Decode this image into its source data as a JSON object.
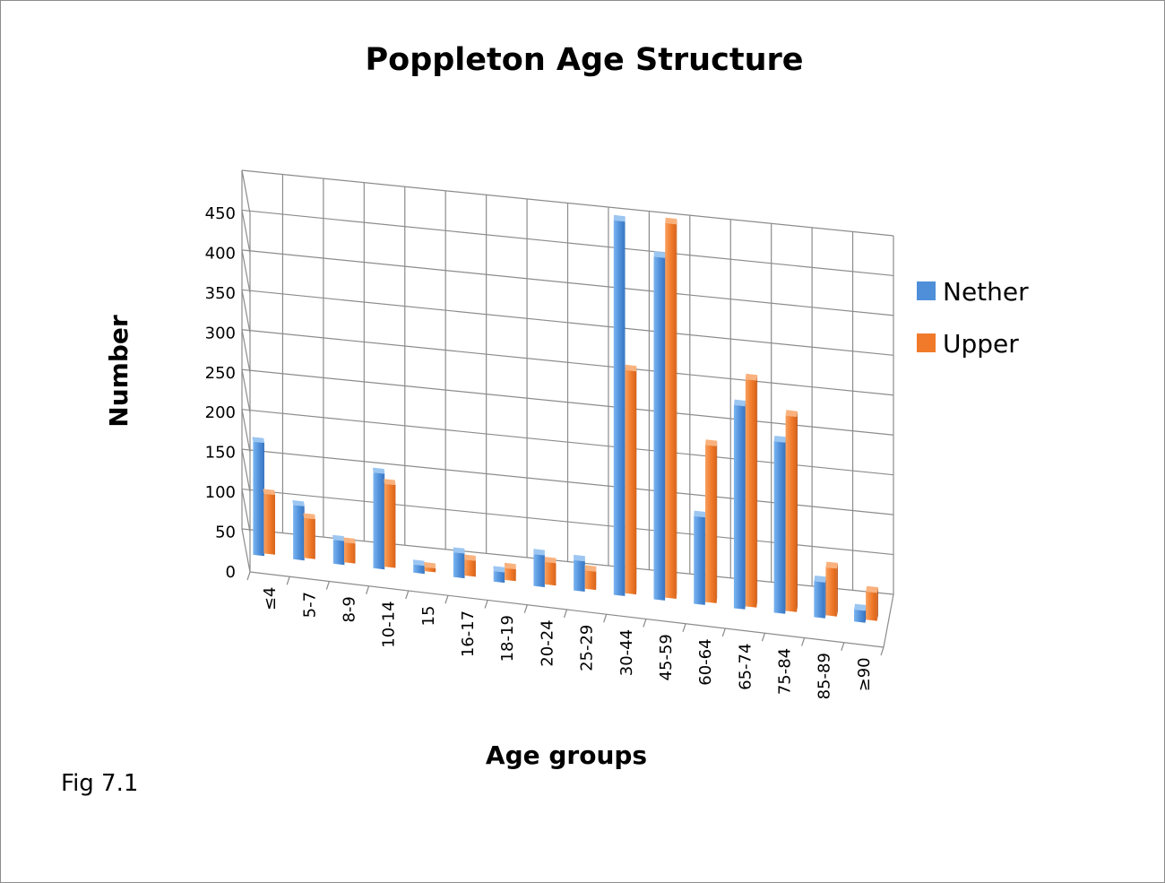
{
  "chart_data": {
    "type": "bar",
    "title": "Poppleton Age Structure",
    "xlabel": "Age groups",
    "ylabel": "Number",
    "ylim": [
      0,
      450
    ],
    "yticks": [
      0,
      50,
      100,
      150,
      200,
      250,
      300,
      350,
      400,
      450
    ],
    "grid": true,
    "legend_position": "right",
    "categories": [
      "≤4",
      "5-7",
      "8-9",
      "10-14",
      "15",
      "16-17",
      "18-19",
      "20-24",
      "25-29",
      "30-44",
      "45-59",
      "60-64",
      "65-74",
      "75-84",
      "85-89",
      "≥90"
    ],
    "series": [
      {
        "name": "Nether",
        "color": "#4f8fd9",
        "values": [
          142,
          68,
          30,
          120,
          10,
          31,
          13,
          40,
          38,
          470,
          430,
          110,
          255,
          215,
          45,
          15
        ]
      },
      {
        "name": "Upper",
        "color": "#f07a2a",
        "values": [
          75,
          50,
          25,
          104,
          5,
          20,
          15,
          28,
          23,
          280,
          470,
          197,
          285,
          245,
          60,
          35
        ]
      }
    ]
  },
  "caption": "Fig 7.1"
}
